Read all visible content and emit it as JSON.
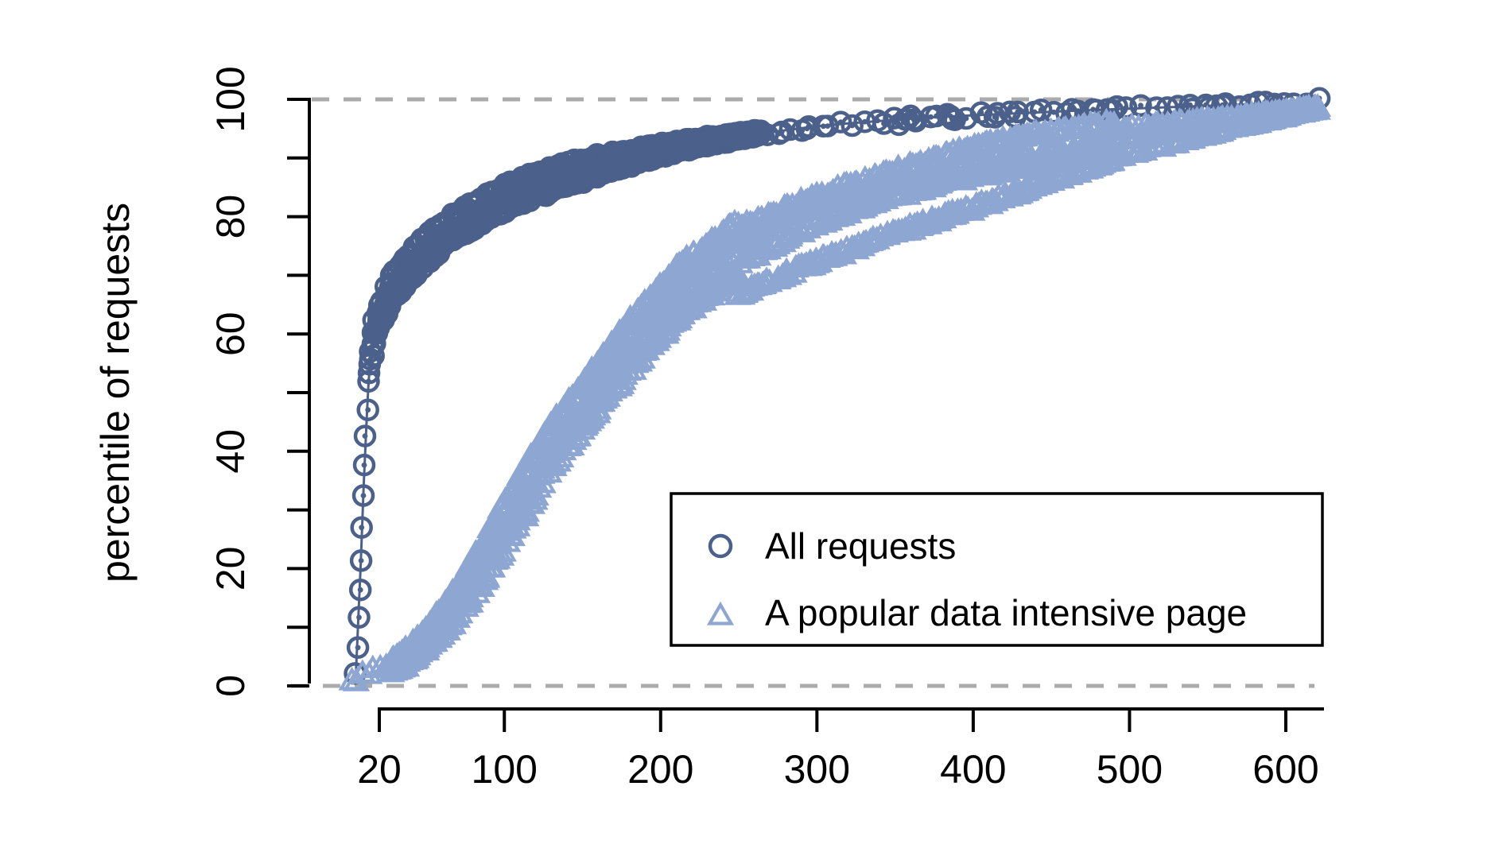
{
  "chart_data": {
    "type": "scatter",
    "title": "",
    "xlabel": "",
    "ylabel": "percentile of requests",
    "xlim": [
      0,
      630
    ],
    "ylim": [
      0,
      100
    ],
    "x_ticks": [
      20,
      100,
      200,
      300,
      400,
      500,
      600
    ],
    "y_ticks_labeled": [
      0,
      20,
      40,
      60,
      80,
      100
    ],
    "y_minor_tick_step": 10,
    "gridlines": {
      "y_values": [
        0,
        100
      ],
      "style": "dashed",
      "color": "#ababab"
    },
    "legend": {
      "position": "right-center",
      "border": true,
      "items": [
        {
          "label": "All requests",
          "marker": "circle",
          "color": "#4b608a"
        },
        {
          "label": "A popular data intensive page",
          "marker": "triangle",
          "color": "#8ea6d2"
        }
      ]
    },
    "series": [
      {
        "name": "All requests",
        "marker": "circle",
        "color": "#4b608a",
        "cdf_percentile_points": [
          [
            5,
            2
          ],
          [
            6,
            8
          ],
          [
            7,
            14
          ],
          [
            8,
            20
          ],
          [
            9,
            27
          ],
          [
            10,
            34
          ],
          [
            11,
            40
          ],
          [
            12,
            46
          ],
          [
            13,
            51
          ],
          [
            14,
            55
          ],
          [
            16,
            59
          ],
          [
            18,
            61
          ],
          [
            21,
            63
          ],
          [
            24,
            65
          ],
          [
            27,
            67
          ],
          [
            31,
            68.5
          ],
          [
            35,
            70
          ],
          [
            40,
            71.5
          ],
          [
            45,
            73
          ],
          [
            51,
            74.5
          ],
          [
            58,
            76
          ],
          [
            65,
            77.5
          ],
          [
            73,
            79
          ],
          [
            82,
            80.5
          ],
          [
            91,
            82
          ],
          [
            100,
            83.3
          ],
          [
            110,
            84.4
          ],
          [
            120,
            85.4
          ],
          [
            130,
            86.3
          ],
          [
            140,
            87.2
          ],
          [
            150,
            88
          ],
          [
            162,
            88.9
          ],
          [
            174,
            89.7
          ],
          [
            186,
            90.5
          ],
          [
            198,
            91.2
          ],
          [
            210,
            91.9
          ],
          [
            225,
            92.6
          ],
          [
            240,
            93.3
          ],
          [
            255,
            93.9
          ],
          [
            270,
            94.4
          ],
          [
            285,
            94.9
          ],
          [
            300,
            95.4
          ],
          [
            320,
            95.9
          ],
          [
            340,
            96.3
          ],
          [
            360,
            96.7
          ],
          [
            385,
            97.1
          ],
          [
            410,
            97.4
          ],
          [
            435,
            97.7
          ],
          [
            460,
            98
          ],
          [
            490,
            98.3
          ],
          [
            520,
            98.6
          ],
          [
            550,
            98.9
          ],
          [
            580,
            99.2
          ],
          [
            600,
            99.4
          ],
          [
            615,
            99.6
          ],
          [
            622,
            99.7
          ]
        ]
      },
      {
        "name": "A popular data intensive page",
        "marker": "triangle",
        "color": "#8ea6d2",
        "cdf_percentile_points": [
          [
            2,
            0.3
          ],
          [
            6,
            0.8
          ],
          [
            12,
            1.8
          ],
          [
            18,
            2.6
          ],
          [
            24,
            2.9
          ],
          [
            30,
            3.5
          ],
          [
            36,
            4.6
          ],
          [
            42,
            6
          ],
          [
            48,
            7.5
          ],
          [
            54,
            9.2
          ],
          [
            60,
            11
          ],
          [
            66,
            13
          ],
          [
            72,
            15.2
          ],
          [
            78,
            17.5
          ],
          [
            84,
            20
          ],
          [
            90,
            22.7
          ],
          [
            96,
            25.5
          ],
          [
            102,
            28.3
          ],
          [
            108,
            31
          ],
          [
            114,
            33.6
          ],
          [
            120,
            36.2
          ],
          [
            126,
            38.6
          ],
          [
            132,
            41
          ],
          [
            138,
            43.2
          ],
          [
            144,
            45.2
          ],
          [
            150,
            47.2
          ],
          [
            158,
            49.8
          ],
          [
            166,
            52.4
          ],
          [
            174,
            55
          ],
          [
            182,
            57.5
          ],
          [
            190,
            60
          ],
          [
            198,
            62.3
          ],
          [
            206,
            64.4
          ],
          [
            214,
            66.3
          ],
          [
            222,
            68
          ],
          [
            230,
            69.6
          ],
          [
            240,
            71.4
          ],
          [
            250,
            73
          ],
          [
            260,
            74.4
          ],
          [
            270,
            75.7
          ],
          [
            280,
            76.9
          ],
          [
            290,
            78
          ],
          [
            300,
            79
          ],
          [
            315,
            80.5
          ],
          [
            330,
            81.9
          ],
          [
            345,
            83.2
          ],
          [
            360,
            84.4
          ],
          [
            375,
            85.5
          ],
          [
            390,
            86.5
          ],
          [
            405,
            87.5
          ],
          [
            420,
            88.4
          ],
          [
            435,
            89.3
          ],
          [
            450,
            90.1
          ],
          [
            465,
            90.9
          ],
          [
            480,
            91.7
          ],
          [
            495,
            92.4
          ],
          [
            510,
            93.1
          ],
          [
            525,
            93.8
          ],
          [
            540,
            94.5
          ],
          [
            555,
            95.2
          ],
          [
            570,
            95.9
          ],
          [
            585,
            96.6
          ],
          [
            600,
            97.3
          ],
          [
            610,
            97.8
          ],
          [
            622,
            98.3
          ]
        ]
      }
    ]
  }
}
